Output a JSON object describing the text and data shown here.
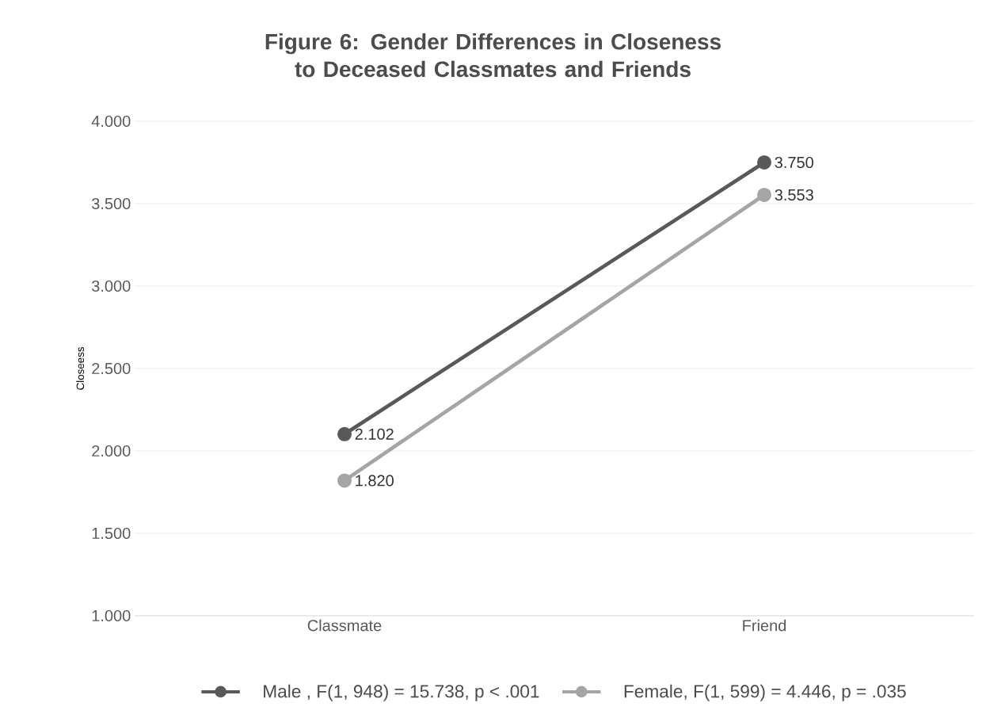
{
  "chart_data": {
    "type": "line",
    "title": "Figure 6: Gender Differences in Closeness to Deceased Classmates and Friends",
    "ylabel": "Closeess",
    "categories": [
      "Classmate",
      "Friend"
    ],
    "series": [
      {
        "name": "Male , F(1, 948) = 15.738, p < .001",
        "color": "#595959",
        "values": [
          2.102,
          3.75
        ],
        "value_labels": [
          "2.102",
          "3.750"
        ]
      },
      {
        "name": "Female, F(1, 599) = 4.446, p = .035",
        "color": "#a5a5a5",
        "values": [
          1.82,
          3.553
        ],
        "value_labels": [
          "1.820",
          "3.553"
        ]
      }
    ],
    "ylim": [
      1,
      4
    ],
    "yticks": [
      {
        "value": 1,
        "label": "1.000"
      },
      {
        "value": 1.5,
        "label": "1.500"
      },
      {
        "value": 2,
        "label": "2.000"
      },
      {
        "value": 2.5,
        "label": "2.500"
      },
      {
        "value": 3,
        "label": "3.000"
      },
      {
        "value": 3.5,
        "label": "3.500"
      },
      {
        "value": 4,
        "label": "4.000"
      }
    ],
    "grid": "y",
    "legend": "bottom",
    "marker": "circle",
    "line_style": "solid"
  }
}
